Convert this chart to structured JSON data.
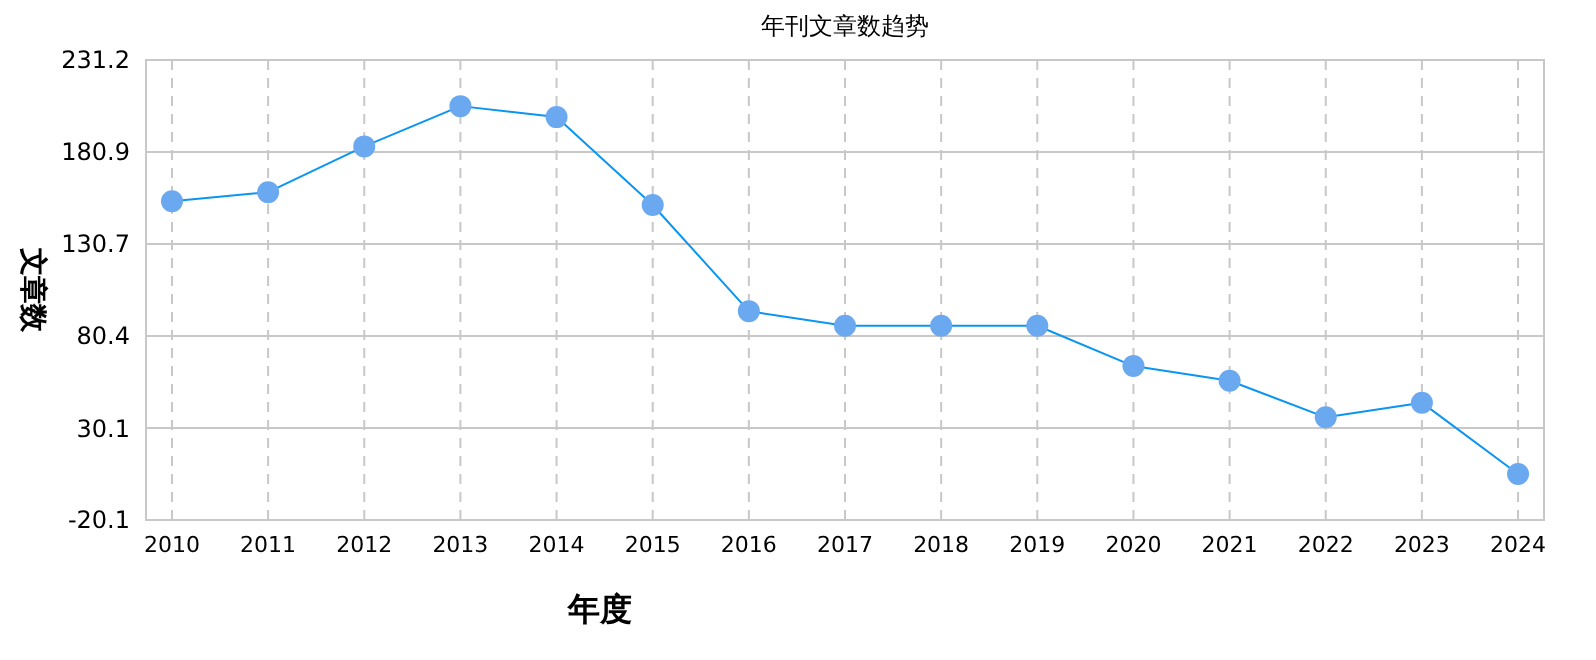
{
  "chart_data": {
    "type": "line",
    "title": "年刊文章数趋势",
    "xlabel": "年度",
    "ylabel": "文章数",
    "categories": [
      "2010",
      "2011",
      "2012",
      "2013",
      "2014",
      "2015",
      "2016",
      "2017",
      "2018",
      "2019",
      "2020",
      "2021",
      "2022",
      "2023",
      "2024"
    ],
    "series": [
      {
        "color": "#0a96f0",
        "values": [
          154,
          159,
          184,
          206,
          200,
          152,
          94,
          86,
          86,
          86,
          64,
          56,
          36,
          44,
          5
        ]
      }
    ],
    "ylim": [
      -20.1,
      231.2
    ],
    "yticks": [
      -20.1,
      30.1,
      80.4,
      130.7,
      180.9,
      231.2
    ],
    "grid": true,
    "marker": "circle",
    "line_style": "solid"
  }
}
